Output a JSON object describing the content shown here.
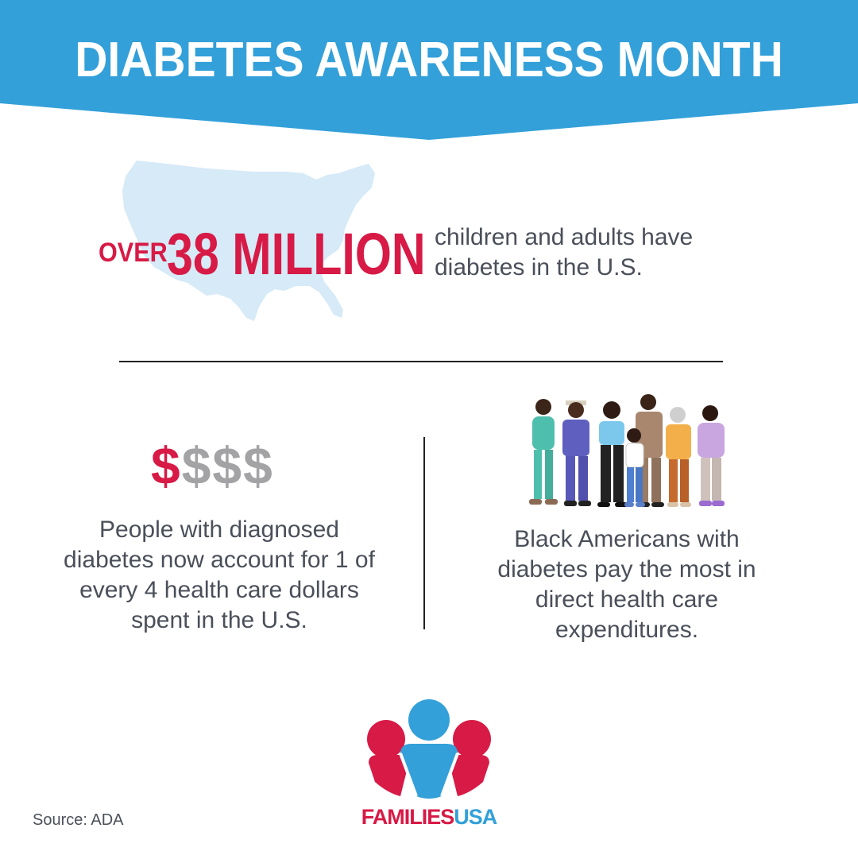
{
  "banner": {
    "title": "DIABETES AWARENESS MONTH",
    "color": "#33a0d9"
  },
  "stat": {
    "prefix": "OVER",
    "number": "38 MILLION",
    "description": "children and adults have diabetes in the U.S."
  },
  "cost": {
    "dollar_highlight": "$",
    "dollar_rest": "$$$",
    "text": "People with diagnosed diabetes now account for 1 of every 4 health care dollars spent in the U.S."
  },
  "disparity": {
    "text": "Black Americans with diabetes pay the most in direct health care expenditures."
  },
  "logo": {
    "part1": "FAMILIES",
    "part2": "USA"
  },
  "source": "Source: ADA",
  "colors": {
    "accent_red": "#d71a46",
    "accent_blue": "#33a0d9",
    "text_gray": "#4a4f59",
    "dollar_gray": "#a3a3a6",
    "map_light_blue": "#d6eaf7"
  }
}
